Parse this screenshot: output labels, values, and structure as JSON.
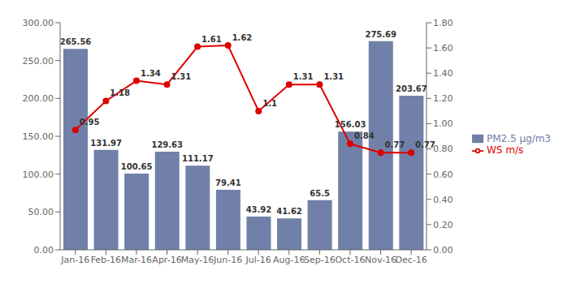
{
  "chart_data": {
    "type": "bar",
    "categories": [
      "Jan-16",
      "Feb-16",
      "Mar-16",
      "Apr-16",
      "May-16",
      "Jun-16",
      "Jul-16",
      "Aug-16",
      "Sep-16",
      "Oct-16",
      "Nov-16",
      "Dec-16"
    ],
    "series": [
      {
        "name": "PM2.5  μg/m3",
        "type": "bar",
        "color": "#7080a8",
        "values": [
          265.56,
          131.97,
          100.65,
          129.63,
          111.17,
          79.41,
          43.92,
          41.62,
          65.5,
          156.03,
          275.69,
          203.67
        ]
      },
      {
        "name": "WS m/s",
        "type": "line",
        "axis": "y2",
        "color": "#dd0000",
        "marker": "circle",
        "values": [
          0.95,
          1.18,
          1.34,
          1.31,
          1.61,
          1.62,
          1.1,
          1.31,
          1.31,
          0.84,
          0.77,
          0.77
        ]
      }
    ],
    "ylim": [
      0,
      300
    ],
    "yticks": [
      {
        "value": 0,
        "label": "0.00"
      },
      {
        "value": 50,
        "label": "50.00"
      },
      {
        "value": 100,
        "label": "100.00"
      },
      {
        "value": 150,
        "label": "150.00"
      },
      {
        "value": 200,
        "label": "200.00"
      },
      {
        "value": 250,
        "label": "250.00"
      },
      {
        "value": 300,
        "label": "300.00"
      }
    ],
    "y2lim": [
      0,
      1.8
    ],
    "y2ticks": [
      {
        "value": 0.0,
        "label": "0.00"
      },
      {
        "value": 0.2,
        "label": "0.20"
      },
      {
        "value": 0.4,
        "label": "0.40"
      },
      {
        "value": 0.6,
        "label": "0.60"
      },
      {
        "value": 0.8,
        "label": "0.80"
      },
      {
        "value": 1.0,
        "label": "1.00"
      },
      {
        "value": 1.2,
        "label": "1.20"
      },
      {
        "value": 1.4,
        "label": "1.40"
      },
      {
        "value": 1.6,
        "label": "1.60"
      },
      {
        "value": 1.8,
        "label": "1.80"
      }
    ],
    "grid": false,
    "legend": "right",
    "data_labels": true
  }
}
